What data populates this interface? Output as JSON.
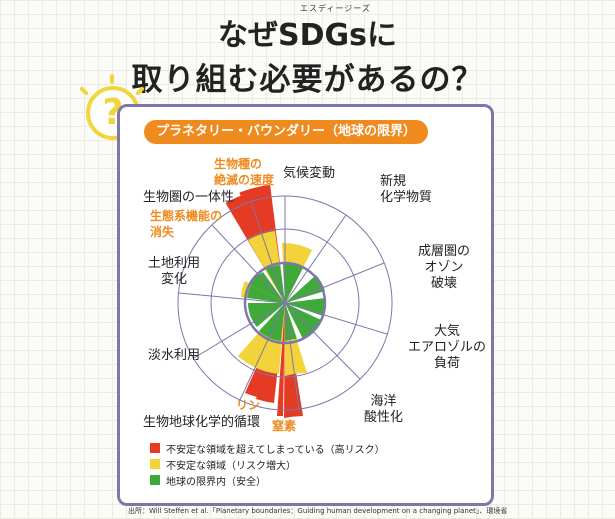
{
  "title": {
    "ruby": "エスディージーズ",
    "line1": "なぜSDGsに",
    "line2": "取り組む必要があるの？"
  },
  "qmark": "?",
  "tag": "プラネタリー・バウンダリー（地球の限界）",
  "labels": {
    "extinction": [
      "生物種の",
      "絶滅の速度"
    ],
    "biosphere": "生物圏の一体性",
    "ecosystem": [
      "生態系機能の",
      "消失"
    ],
    "climate": "気候変動",
    "chemicals": [
      "新規",
      "化学物質"
    ],
    "ozone": [
      "成層圏の",
      "オゾン",
      "破壊"
    ],
    "aerosol": [
      "大気",
      "エアロゾルの",
      "負荷"
    ],
    "acid": [
      "海洋",
      "酸性化"
    ],
    "land": [
      "土地利用",
      "変化"
    ],
    "water": "淡水利用",
    "biogeo": "生物地球化学的循環",
    "phosphorus": "リン",
    "nitrogen": "窒素"
  },
  "legend": [
    {
      "label": "不安定な領域を超えてしまっている（高リスク）",
      "color": "#e53a24"
    },
    {
      "label": "不安定な領域（リスク増大）",
      "color": "#f2d33a"
    },
    {
      "label": "地球の限界内（安全）",
      "color": "#3faa3a"
    }
  ],
  "source": "出所：Will Steffen et al.「Planetary boundaries：Guiding human development on a changing planet」、環境省",
  "colors": {
    "ring": "#7e77ab",
    "panel_border": "#7e77ab",
    "orange": "#ef8a1f"
  }
}
